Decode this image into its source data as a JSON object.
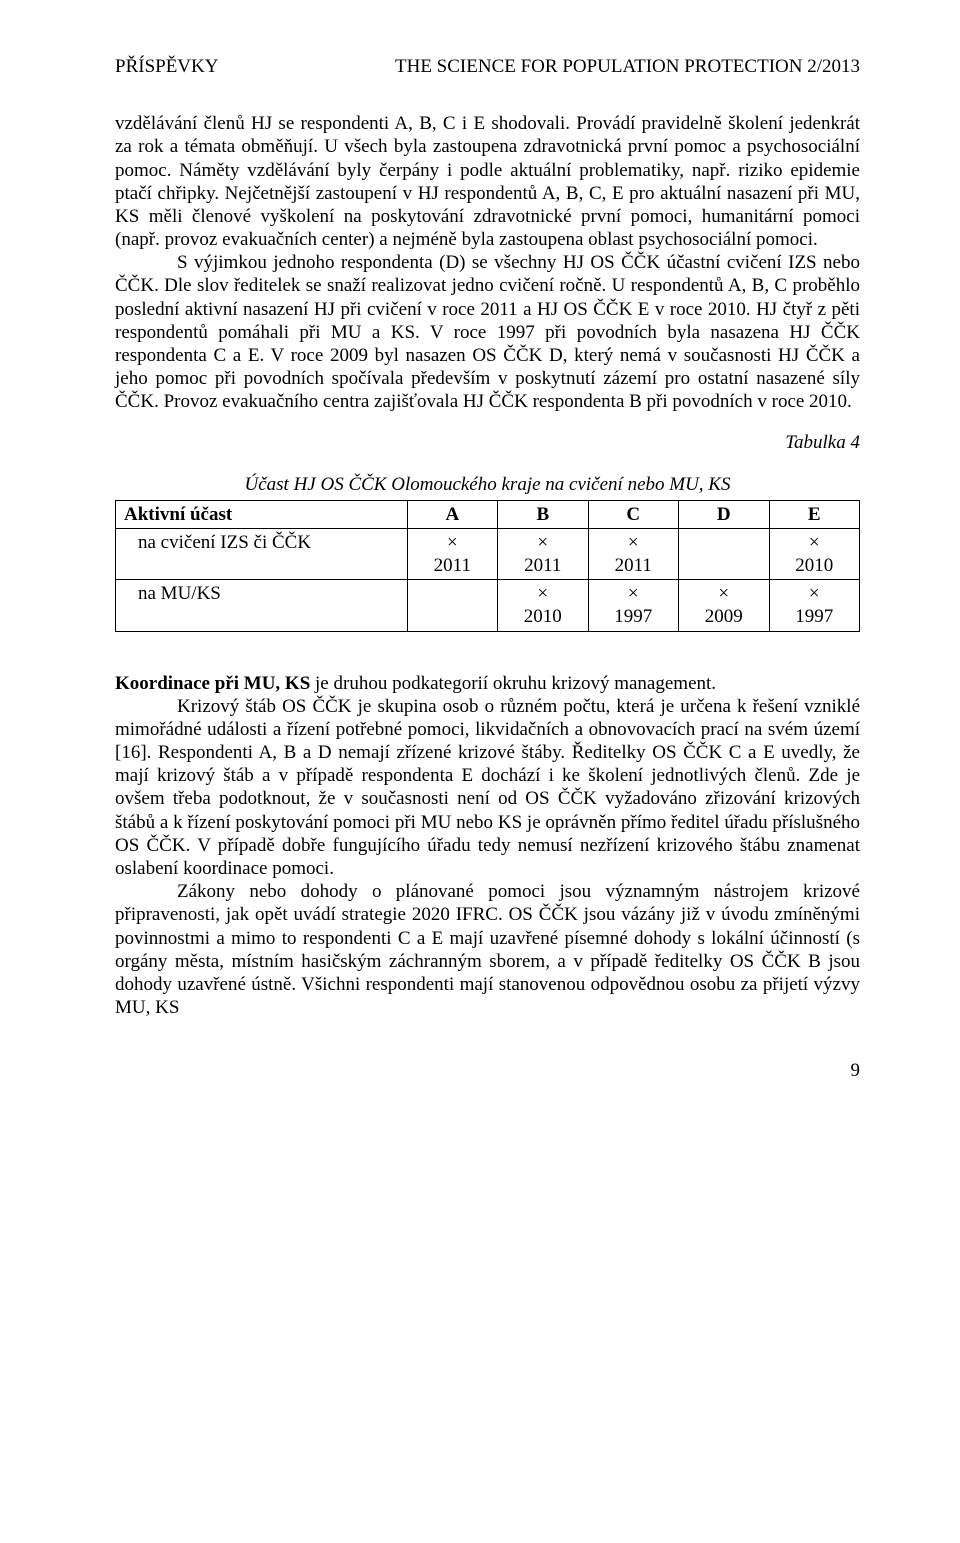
{
  "header": {
    "left": "PŘÍSPĚVKY",
    "right": "THE SCIENCE FOR POPULATION PROTECTION 2/2013"
  },
  "paragraphs": {
    "p1": "vzdělávání členů HJ se respondenti A, B, C i E shodovali. Provádí pravidelně školení jedenkrát za rok a témata obměňují. U všech byla zastoupena zdravotnická první pomoc a psychosociální pomoc. Náměty vzdělávání byly čerpány i podle aktuální problematiky, např. riziko epidemie ptačí chřipky. Nejčetnější zastoupení v HJ respondentů A, B, C, E pro aktuální nasazení při MU, KS měli členové vyškolení na poskytování zdravotnické první pomoci, humanitární pomoci (např. provoz evakuačních center) a nejméně byla zastoupena oblast psychosociální pomoci.",
    "p2": "S výjimkou jednoho respondenta (D) se všechny HJ OS ČČK  účastní cvičení IZS nebo ČČK. Dle slov ředitelek se snaží realizovat jedno cvičení ročně. U respondentů A, B, C proběhlo poslední aktivní nasazení HJ při cvičení v roce 2011 a HJ OS ČČK E v roce 2010. HJ čtyř z pěti respondentů pomáhali při MU a KS. V roce 1997 při povodních byla nasazena HJ ČČK respondenta C a E. V roce 2009 byl nasazen OS ČČK D, který nemá v současnosti HJ ČČK a jeho pomoc při povodních spočívala především v poskytnutí zázemí pro ostatní nasazené síly ČČK. Provoz evakuačního centra zajišťovala HJ ČČK respondenta B při povodních v roce 2010.",
    "p3_lead": "Koordinace při MU, KS",
    "p3_rest": " je druhou podkategorií okruhu krizový management.",
    "p4": "Krizový štáb OS ČČK je skupina osob o různém počtu, která je určena k řešení vzniklé mimořádné události a řízení potřebné pomoci, likvidačních a obnovovacích prací na svém území [16]. Respondenti A, B a D nemají zřízené krizové štáby. Ředitelky OS ČČK C a E uvedly, že mají krizový štáb a v případě respondenta E dochází i ke školení jednotlivých členů. Zde je ovšem třeba podotknout, že v současnosti není od OS ČČK vyžadováno zřizování krizových štábů a k řízení poskytování pomoci při MU nebo KS je oprávněn přímo ředitel úřadu příslušného OS ČČK. V případě dobře fungujícího úřadu tedy nemusí nezřízení krizového štábu znamenat oslabení koordinace pomoci.",
    "p5": "Zákony nebo dohody o plánované pomoci jsou významným nástrojem krizové připravenosti, jak opět uvádí strategie 2020 IFRC. OS ČČK jsou vázány již v úvodu zmíněnými povinnostmi a mimo to respondenti C a E mají uzavřené písemné dohody s lokální účinností (s orgány města, místním hasičským záchranným sborem, a v případě ředitelky OS ČČK B jsou dohody uzavřené ústně. Všichni respondenti mají stanovenou odpovědnou osobu za přijetí výzvy MU, KS"
  },
  "table": {
    "label": "Tabulka 4",
    "caption": "Účast HJ OS ČČK Olomouckého kraje na cvičení nebo MU, KS",
    "headers": {
      "h0": "Aktivní účast",
      "h1": "A",
      "h2": "B",
      "h3": "C",
      "h4": "D",
      "h5": "E"
    },
    "rows": {
      "r1": {
        "label": "na cvičení IZS či ČČK",
        "c1": "×\n2011",
        "c2": "×\n2011",
        "c3": "×\n2011",
        "c4": "",
        "c5": "×\n2010"
      },
      "r2": {
        "label": "na MU/KS",
        "c1": "",
        "c2": "×\n2010",
        "c3": "×\n1997",
        "c4": "×\n2009",
        "c5": "×\n1997"
      }
    }
  },
  "footer": {
    "page": "9"
  }
}
